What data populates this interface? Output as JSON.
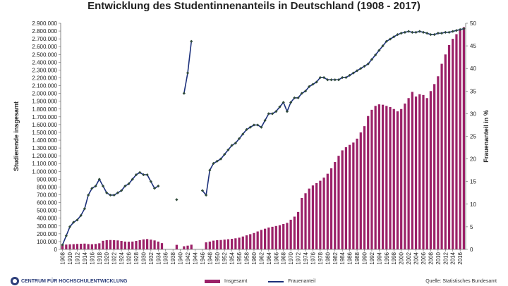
{
  "title": "Entwicklung des Studentinnenanteils in Deutschland (1908 - 2017)",
  "footer": {
    "logo_text": "CENTRUM FÜR HOCHSCHULENTWICKLUNG",
    "source": "Quelle: Statistisches Bundesamt"
  },
  "colors": {
    "bars": "#9b2168",
    "line": "#1b2f7a",
    "markers": "#2f4a3a"
  },
  "chart_data": {
    "type": "bar",
    "title": "Entwicklung des Studentinnenanteils in Deutschland (1908 - 2017)",
    "ylabel_left": "Studierende insgesamt",
    "ylabel_right": "Frauenanteil in %",
    "ylim_left": [
      0,
      2900000
    ],
    "ylim_right": [
      0,
      50
    ],
    "yticks_left": [
      "0",
      "100.000",
      "200.000",
      "300.000",
      "400.000",
      "500.000",
      "600.000",
      "700.000",
      "800.000",
      "900.000",
      "1.000.000",
      "1.100.000",
      "1.200.000",
      "1.300.000",
      "1.400.000",
      "1.500.000",
      "1.600.000",
      "1.700.000",
      "1.800.000",
      "1.900.000",
      "2.000.000",
      "2.100.000",
      "2.200.000",
      "2.300.000",
      "2.400.000",
      "2.500.000",
      "2.600.000",
      "2.700.000",
      "2.800.000",
      "2.900.000"
    ],
    "yticks_right": [
      "0",
      "5",
      "10",
      "15",
      "20",
      "25",
      "30",
      "35",
      "40",
      "45",
      "50"
    ],
    "xticks": [
      "1908",
      "1910",
      "1912",
      "1914",
      "1916",
      "1918",
      "1920",
      "1922",
      "1924",
      "1926",
      "1928",
      "1930",
      "1932",
      "1934",
      "1936",
      "1938",
      "1940",
      "1942",
      "1944",
      "1946",
      "1948",
      "1950",
      "1952",
      "1954",
      "1956",
      "1958",
      "1960",
      "1962",
      "1964",
      "1966",
      "1968",
      "1970",
      "1972",
      "1974",
      "1976",
      "1978",
      "1980",
      "1982",
      "1984",
      "1986",
      "1988",
      "1990",
      "1992",
      "1994",
      "1996",
      "1998",
      "2000",
      "2002",
      "2004",
      "2006",
      "2008",
      "2010",
      "2012",
      "2014",
      "2016"
    ],
    "x_range": [
      1908,
      2017
    ],
    "legend": [
      "Insgesamt",
      "Frauenanteil"
    ],
    "legend_position": "bottom",
    "grid": false,
    "series": [
      {
        "name": "Insgesamt",
        "type": "bar",
        "axis": "left",
        "points": [
          [
            1908,
            60000
          ],
          [
            1909,
            62000
          ],
          [
            1910,
            65000
          ],
          [
            1911,
            67000
          ],
          [
            1912,
            70000
          ],
          [
            1913,
            72000
          ],
          [
            1914,
            74000
          ],
          [
            1915,
            68000
          ],
          [
            1916,
            66000
          ],
          [
            1917,
            70000
          ],
          [
            1918,
            78000
          ],
          [
            1919,
            110000
          ],
          [
            1920,
            118000
          ],
          [
            1921,
            120000
          ],
          [
            1922,
            118000
          ],
          [
            1923,
            115000
          ],
          [
            1924,
            108000
          ],
          [
            1925,
            100000
          ],
          [
            1926,
            98000
          ],
          [
            1927,
            100000
          ],
          [
            1928,
            108000
          ],
          [
            1929,
            118000
          ],
          [
            1930,
            128000
          ],
          [
            1931,
            132000
          ],
          [
            1932,
            125000
          ],
          [
            1933,
            115000
          ],
          [
            1934,
            100000
          ],
          [
            1935,
            80000
          ],
          [
            1939,
            58000
          ],
          [
            1941,
            40000
          ],
          [
            1942,
            48000
          ],
          [
            1943,
            60000
          ],
          [
            1947,
            90000
          ],
          [
            1948,
            100000
          ],
          [
            1949,
            112000
          ],
          [
            1950,
            118000
          ],
          [
            1951,
            120000
          ],
          [
            1952,
            125000
          ],
          [
            1953,
            130000
          ],
          [
            1954,
            135000
          ],
          [
            1955,
            142000
          ],
          [
            1956,
            150000
          ],
          [
            1957,
            165000
          ],
          [
            1958,
            180000
          ],
          [
            1959,
            195000
          ],
          [
            1960,
            210000
          ],
          [
            1961,
            230000
          ],
          [
            1962,
            250000
          ],
          [
            1963,
            265000
          ],
          [
            1964,
            280000
          ],
          [
            1965,
            290000
          ],
          [
            1966,
            300000
          ],
          [
            1967,
            310000
          ],
          [
            1968,
            325000
          ],
          [
            1969,
            340000
          ],
          [
            1970,
            380000
          ],
          [
            1971,
            420000
          ],
          [
            1972,
            480000
          ],
          [
            1973,
            660000
          ],
          [
            1974,
            720000
          ],
          [
            1975,
            780000
          ],
          [
            1976,
            820000
          ],
          [
            1977,
            850000
          ],
          [
            1978,
            880000
          ],
          [
            1979,
            920000
          ],
          [
            1980,
            970000
          ],
          [
            1981,
            1040000
          ],
          [
            1982,
            1120000
          ],
          [
            1983,
            1200000
          ],
          [
            1984,
            1270000
          ],
          [
            1985,
            1310000
          ],
          [
            1986,
            1340000
          ],
          [
            1987,
            1370000
          ],
          [
            1988,
            1420000
          ],
          [
            1989,
            1500000
          ],
          [
            1990,
            1580000
          ],
          [
            1991,
            1710000
          ],
          [
            1992,
            1790000
          ],
          [
            1993,
            1840000
          ],
          [
            1994,
            1860000
          ],
          [
            1995,
            1855000
          ],
          [
            1996,
            1840000
          ],
          [
            1997,
            1825000
          ],
          [
            1998,
            1800000
          ],
          [
            1999,
            1770000
          ],
          [
            2000,
            1800000
          ],
          [
            2001,
            1870000
          ],
          [
            2002,
            1940000
          ],
          [
            2003,
            2020000
          ],
          [
            2004,
            1960000
          ],
          [
            2005,
            1990000
          ],
          [
            2006,
            1980000
          ],
          [
            2007,
            1940000
          ],
          [
            2008,
            2030000
          ],
          [
            2009,
            2120000
          ],
          [
            2010,
            2220000
          ],
          [
            2011,
            2380000
          ],
          [
            2012,
            2500000
          ],
          [
            2013,
            2620000
          ],
          [
            2014,
            2700000
          ],
          [
            2015,
            2760000
          ],
          [
            2016,
            2810000
          ],
          [
            2017,
            2850000
          ]
        ]
      },
      {
        "name": "Frauenanteil",
        "type": "line",
        "axis": "right",
        "segments": [
          [
            [
              1908,
              1.0
            ],
            [
              1909,
              3.0
            ],
            [
              1910,
              5.0
            ],
            [
              1911,
              6.0
            ],
            [
              1912,
              6.5
            ],
            [
              1913,
              7.5
            ],
            [
              1914,
              9.0
            ],
            [
              1915,
              12.0
            ],
            [
              1916,
              13.5
            ],
            [
              1917,
              14.0
            ],
            [
              1918,
              15.5
            ],
            [
              1919,
              14.0
            ],
            [
              1920,
              12.5
            ],
            [
              1921,
              12.0
            ],
            [
              1922,
              12.0
            ],
            [
              1923,
              12.5
            ],
            [
              1924,
              13.0
            ],
            [
              1925,
              14.0
            ],
            [
              1926,
              14.5
            ],
            [
              1927,
              15.5
            ],
            [
              1928,
              16.5
            ],
            [
              1929,
              17.0
            ],
            [
              1930,
              16.5
            ],
            [
              1931,
              16.5
            ],
            [
              1932,
              15.0
            ],
            [
              1933,
              13.5
            ],
            [
              1934,
              14.0
            ]
          ],
          [
            [
              1939,
              11.0
            ]
          ],
          [
            [
              1941,
              34.5
            ],
            [
              1942,
              39.0
            ],
            [
              1943,
              46.0
            ]
          ],
          [
            [
              1946,
              13.0
            ],
            [
              1947,
              12.0
            ],
            [
              1948,
              17.5
            ],
            [
              1949,
              19.0
            ],
            [
              1950,
              19.5
            ],
            [
              1951,
              20.0
            ],
            [
              1952,
              21.0
            ],
            [
              1953,
              22.0
            ],
            [
              1954,
              23.0
            ],
            [
              1955,
              23.5
            ],
            [
              1956,
              24.5
            ],
            [
              1957,
              25.5
            ],
            [
              1958,
              26.5
            ],
            [
              1959,
              27.0
            ],
            [
              1960,
              27.5
            ],
            [
              1961,
              27.5
            ],
            [
              1962,
              27.0
            ],
            [
              1963,
              28.5
            ],
            [
              1964,
              30.0
            ],
            [
              1965,
              30.0
            ],
            [
              1966,
              30.5
            ],
            [
              1967,
              31.5
            ],
            [
              1968,
              32.5
            ],
            [
              1969,
              30.5
            ],
            [
              1970,
              32.5
            ],
            [
              1971,
              33.5
            ],
            [
              1972,
              33.5
            ],
            [
              1973,
              34.5
            ],
            [
              1974,
              35.0
            ],
            [
              1975,
              36.0
            ],
            [
              1976,
              36.5
            ],
            [
              1977,
              37.0
            ],
            [
              1978,
              38.0
            ],
            [
              1979,
              38.0
            ],
            [
              1980,
              37.5
            ],
            [
              1981,
              37.5
            ],
            [
              1982,
              37.5
            ],
            [
              1983,
              37.5
            ],
            [
              1984,
              38.0
            ],
            [
              1985,
              38.0
            ],
            [
              1986,
              38.5
            ],
            [
              1987,
              39.0
            ],
            [
              1988,
              39.5
            ],
            [
              1989,
              40.0
            ],
            [
              1990,
              40.5
            ],
            [
              1991,
              41.0
            ],
            [
              1992,
              42.0
            ],
            [
              1993,
              43.0
            ],
            [
              1994,
              44.0
            ],
            [
              1995,
              45.0
            ],
            [
              1996,
              46.0
            ],
            [
              1997,
              46.5
            ],
            [
              1998,
              47.0
            ],
            [
              1999,
              47.5
            ],
            [
              2000,
              47.8
            ],
            [
              2001,
              48.0
            ],
            [
              2002,
              48.2
            ],
            [
              2003,
              48.0
            ],
            [
              2004,
              48.0
            ],
            [
              2005,
              48.2
            ],
            [
              2006,
              48.0
            ],
            [
              2007,
              47.8
            ],
            [
              2008,
              47.5
            ],
            [
              2009,
              47.5
            ],
            [
              2010,
              47.8
            ],
            [
              2011,
              47.8
            ],
            [
              2012,
              48.0
            ],
            [
              2013,
              48.0
            ],
            [
              2014,
              48.2
            ],
            [
              2015,
              48.4
            ],
            [
              2016,
              48.6
            ],
            [
              2017,
              48.8
            ]
          ]
        ]
      }
    ]
  }
}
